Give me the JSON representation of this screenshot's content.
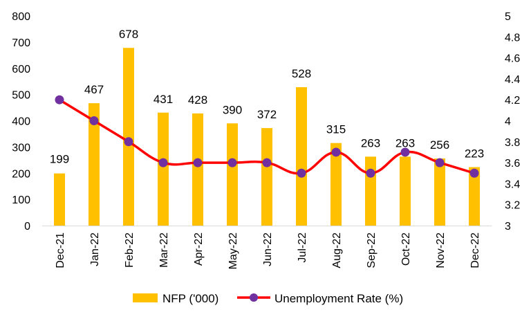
{
  "chart_data": {
    "type": "bar",
    "categories": [
      "Dec-21",
      "Jan-22",
      "Feb-22",
      "Mar-22",
      "Apr-22",
      "May-22",
      "Jun-22",
      "Jul-22",
      "Aug-22",
      "Sep-22",
      "Oct-22",
      "Nov-22",
      "Dec-22"
    ],
    "series": [
      {
        "name": "NFP ('000)",
        "type": "bar",
        "axis": "left",
        "color": "#FFC000",
        "values": [
          199,
          467,
          678,
          431,
          428,
          390,
          372,
          528,
          315,
          263,
          263,
          256,
          223
        ],
        "data_labels": [
          "199",
          "467",
          "678",
          "431",
          "428",
          "390",
          "372",
          "528",
          "315",
          "263",
          "263",
          "256",
          "223"
        ]
      },
      {
        "name": "Unemployment Rate (%)",
        "type": "line",
        "axis": "right",
        "color": "#FF0000",
        "marker_color": "#7030A0",
        "values": [
          4.2,
          4.0,
          3.8,
          3.6,
          3.6,
          3.6,
          3.6,
          3.5,
          3.7,
          3.5,
          3.7,
          3.6,
          3.5
        ]
      }
    ],
    "y_left": {
      "ylim": [
        0,
        800
      ],
      "ticks": [
        "0",
        "100",
        "200",
        "300",
        "400",
        "500",
        "600",
        "700",
        "800"
      ]
    },
    "y_right": {
      "ylim": [
        3,
        5
      ],
      "ticks": [
        "3",
        "3.2",
        "3.4",
        "3.6",
        "3.8",
        "4",
        "4.2",
        "4.4",
        "4.6",
        "4.8",
        "5"
      ]
    },
    "title": "",
    "xlabel": "",
    "ylabel": "",
    "grid": false,
    "legend_position": "bottom"
  }
}
